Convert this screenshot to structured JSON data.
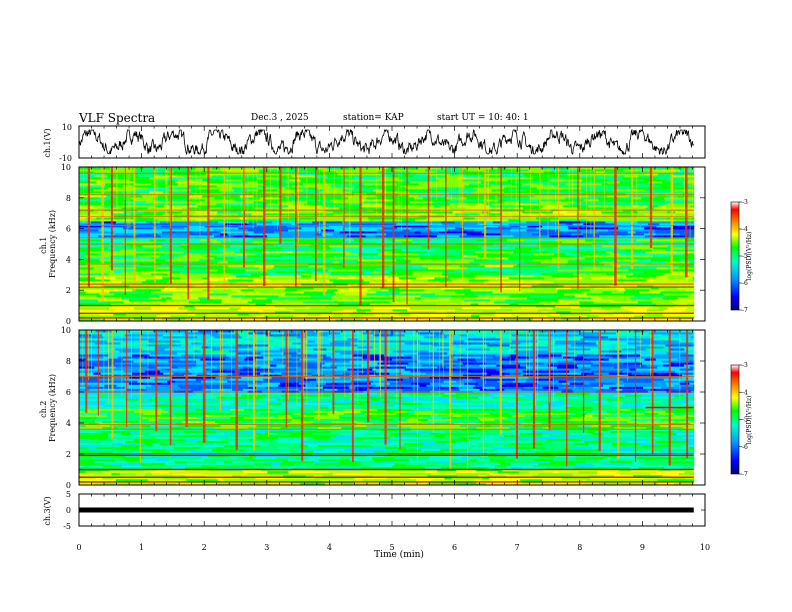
{
  "header": {
    "title": "VLF Spectra",
    "date": "Dec.3 , 2025",
    "station": "station= KAP",
    "start_ut": "start UT = 10: 40: 1"
  },
  "colors": {
    "background": "#ffffff",
    "axis": "#000000",
    "colormap": [
      "#000080",
      "#0000ff",
      "#00a0ff",
      "#00ffc0",
      "#00ff00",
      "#ffff00",
      "#ff8000",
      "#ff0000",
      "#ffffff"
    ]
  },
  "chart_data": [
    {
      "type": "line",
      "name": "ch1-waveform",
      "ylabel": "ch.1(V)",
      "ylim": [
        -10,
        10
      ],
      "yticks": [
        "10",
        "-10"
      ],
      "x_unit": "min",
      "xlim": [
        0,
        10
      ],
      "data_extent": [
        0,
        9.82
      ],
      "description_values": "noisy oscillation roughly between -6 and 6 V"
    },
    {
      "type": "heatmap",
      "name": "ch1-spectrogram",
      "ylabel": "ch.1\nFrequency (kHz)",
      "ylim": [
        0,
        10
      ],
      "yticks": [
        "0",
        "2",
        "4",
        "6",
        "8",
        "10"
      ],
      "xlim": [
        0,
        10
      ],
      "data_extent": [
        0,
        9.82
      ],
      "colorbar": {
        "label": "log(PSD)(V²/Hz)",
        "range": [
          -7,
          -3
        ],
        "ticks": [
          "-3",
          "-4",
          "-5",
          "-6",
          "-7"
        ]
      },
      "lines_khz": [
        0.2,
        0.5,
        1.0,
        2.2,
        2.4,
        3.7,
        5.0,
        5.4,
        6.2,
        6.8,
        7.2,
        8.2,
        9.6
      ],
      "bursts_min": [
        0.14,
        0.36,
        0.51,
        0.73,
        0.87,
        1.2,
        1.45,
        1.73,
        2.05,
        2.31,
        2.62,
        2.94,
        3.2,
        3.45,
        3.77,
        3.9,
        4.22,
        4.48,
        4.84,
        5.01,
        5.23,
        5.57,
        5.85,
        6.12,
        6.47,
        6.73,
        7.03,
        7.35,
        7.65,
        7.96,
        8.22,
        8.55,
        8.82,
        9.12,
        9.45,
        9.68
      ]
    },
    {
      "type": "heatmap",
      "name": "ch2-spectrogram",
      "ylabel": "ch.2\nFrequency (kHz)",
      "ylim": [
        0,
        10
      ],
      "yticks": [
        "0",
        "2",
        "4",
        "6",
        "8",
        "10"
      ],
      "xlim": [
        0,
        10
      ],
      "data_extent": [
        0,
        9.82
      ],
      "colorbar": {
        "label": "log(PSD)(V²/Hz)",
        "range": [
          -7,
          -3
        ],
        "ticks": [
          "-3",
          "-4",
          "-5",
          "-6",
          "-7"
        ]
      },
      "lines_khz": [
        0.2,
        0.5,
        1.0,
        1.9,
        2.0,
        3.6,
        3.9,
        6.0,
        7.0
      ],
      "bursts_min": [
        0.1,
        0.3,
        0.52,
        0.75,
        0.97,
        1.22,
        1.45,
        1.7,
        1.98,
        2.25,
        2.5,
        2.78,
        3.02,
        3.3,
        3.55,
        3.82,
        4.05,
        4.36,
        4.6,
        4.88,
        5.12,
        5.4,
        5.65,
        5.92,
        6.2,
        6.45,
        6.72,
        6.98,
        7.25,
        7.5,
        7.78,
        8.05,
        8.3,
        8.6,
        8.88,
        9.15,
        9.42,
        9.7
      ],
      "tone_segment": {
        "from_min": 9.05,
        "to_min": 9.82,
        "khz": 5.0
      }
    },
    {
      "type": "line",
      "name": "ch3-waveform",
      "ylabel": "ch.3(V)",
      "xlabel": "Time (min)",
      "ylim": [
        -5,
        5
      ],
      "yticks": [
        "5",
        "0",
        "-5"
      ],
      "xlim": [
        0,
        10
      ],
      "xticks": [
        "0",
        "1",
        "2",
        "3",
        "4",
        "5",
        "6",
        "7",
        "8",
        "9",
        "10"
      ],
      "data_extent": [
        0,
        9.82
      ],
      "constant_value": 0
    }
  ]
}
